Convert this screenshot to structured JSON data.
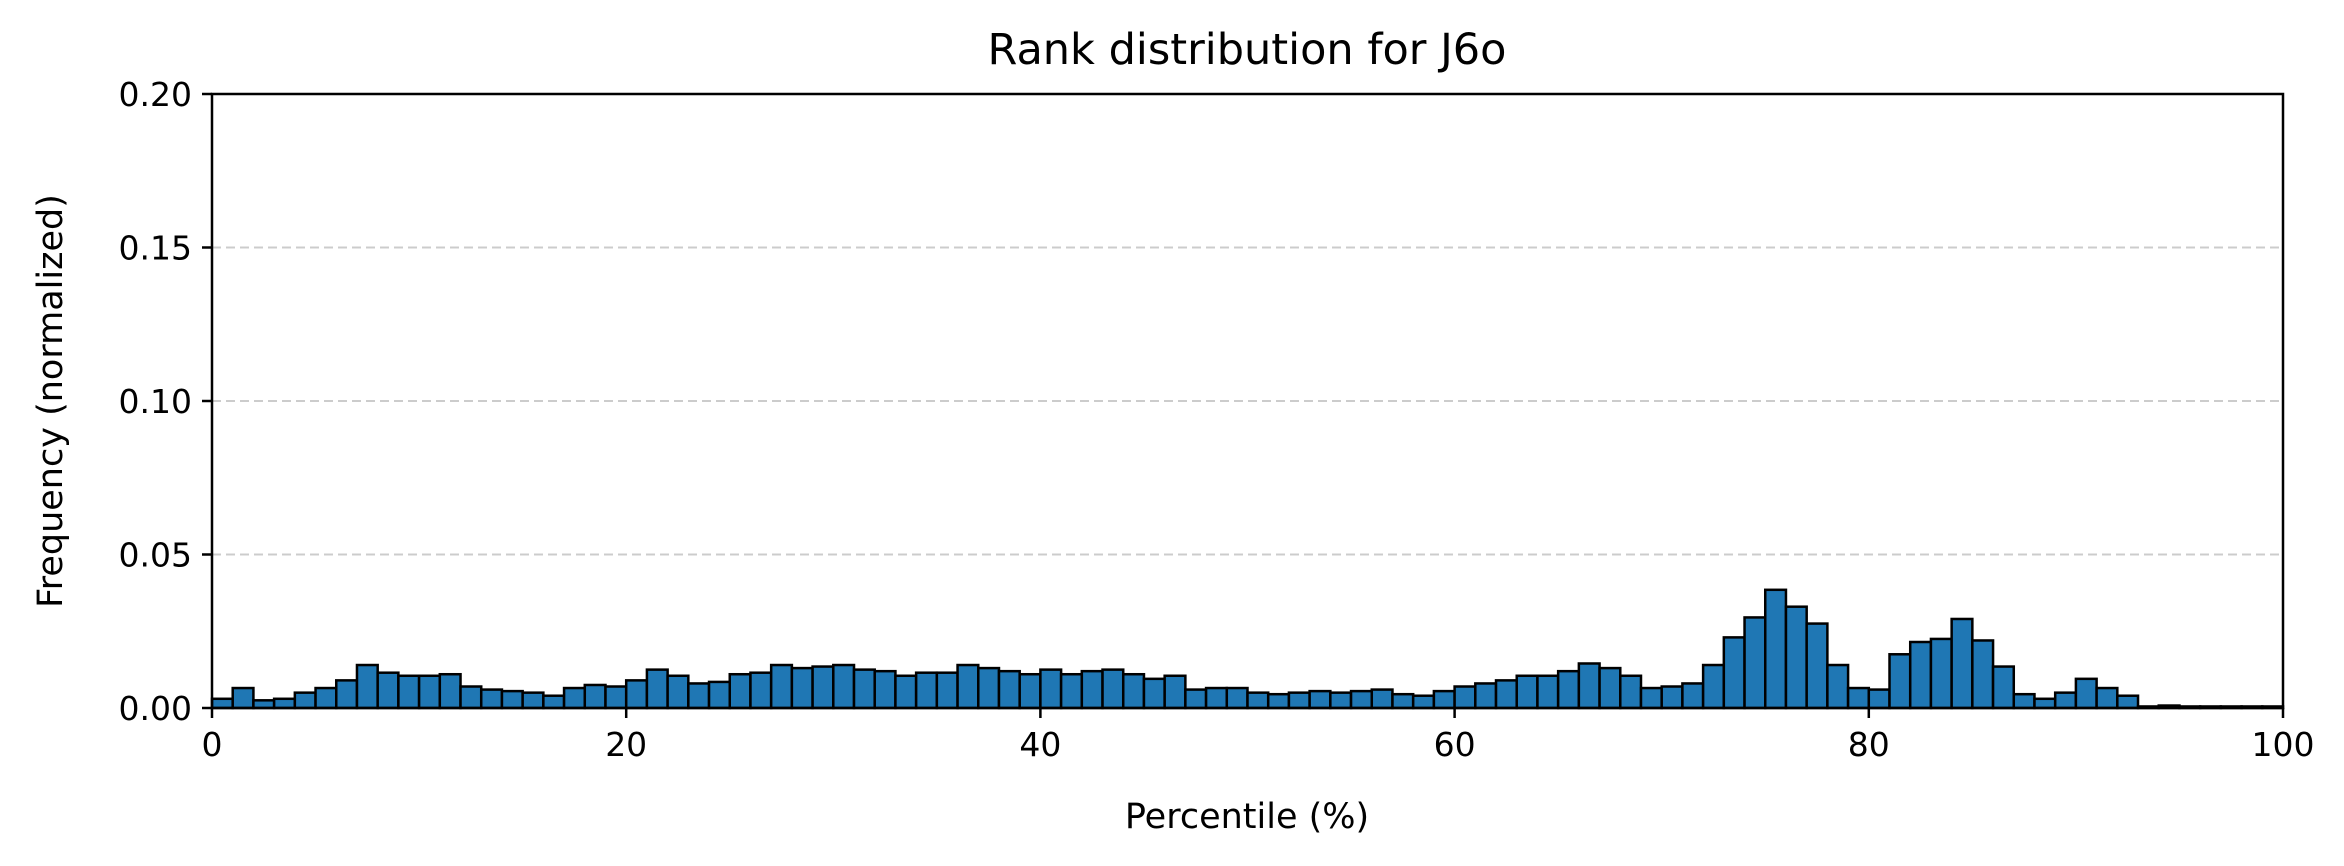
{
  "chart_data": {
    "type": "bar",
    "title": "Rank distribution for J6o",
    "xlabel": "Percentile (%)",
    "ylabel": "Frequency (normalized)",
    "xlim": [
      0,
      100
    ],
    "ylim": [
      0,
      0.2
    ],
    "xticks": [
      0,
      20,
      40,
      60,
      80,
      100
    ],
    "xtick_labels": [
      "0",
      "20",
      "40",
      "60",
      "80",
      "100"
    ],
    "yticks": [
      0,
      0.05,
      0.1,
      0.15,
      0.2
    ],
    "ytick_labels": [
      "0.00",
      "0.05",
      "0.10",
      "0.15",
      "0.20"
    ],
    "grid": "y-dashed",
    "bin_width": 1,
    "bin_starts": [
      0,
      1,
      2,
      3,
      4,
      5,
      6,
      7,
      8,
      9,
      10,
      11,
      12,
      13,
      14,
      15,
      16,
      17,
      18,
      19,
      20,
      21,
      22,
      23,
      24,
      25,
      26,
      27,
      28,
      29,
      30,
      31,
      32,
      33,
      34,
      35,
      36,
      37,
      38,
      39,
      40,
      41,
      42,
      43,
      44,
      45,
      46,
      47,
      48,
      49,
      50,
      51,
      52,
      53,
      54,
      55,
      56,
      57,
      58,
      59,
      60,
      61,
      62,
      63,
      64,
      65,
      66,
      67,
      68,
      69,
      70,
      71,
      72,
      73,
      74,
      75,
      76,
      77,
      78,
      79,
      80,
      81,
      82,
      83,
      84,
      85,
      86,
      87,
      88,
      89,
      90,
      91,
      92,
      93,
      94,
      95,
      96,
      97,
      98,
      99
    ],
    "values": [
      0.003,
      0.0065,
      0.0025,
      0.003,
      0.005,
      0.0065,
      0.009,
      0.014,
      0.0115,
      0.0105,
      0.0105,
      0.011,
      0.007,
      0.006,
      0.0055,
      0.005,
      0.004,
      0.0065,
      0.0075,
      0.007,
      0.009,
      0.0125,
      0.0105,
      0.008,
      0.0085,
      0.011,
      0.0115,
      0.014,
      0.013,
      0.0135,
      0.014,
      0.0125,
      0.012,
      0.0105,
      0.0115,
      0.0115,
      0.014,
      0.013,
      0.012,
      0.011,
      0.0125,
      0.011,
      0.012,
      0.0125,
      0.011,
      0.0095,
      0.0105,
      0.006,
      0.0065,
      0.0065,
      0.005,
      0.0045,
      0.005,
      0.0055,
      0.005,
      0.0055,
      0.006,
      0.0045,
      0.004,
      0.0055,
      0.007,
      0.008,
      0.009,
      0.0105,
      0.0105,
      0.012,
      0.0145,
      0.013,
      0.0105,
      0.0065,
      0.007,
      0.008,
      0.014,
      0.023,
      0.0295,
      0.0385,
      0.033,
      0.0275,
      0.014,
      0.0065,
      0.006,
      0.0175,
      0.0215,
      0.0225,
      0.029,
      0.022,
      0.0135,
      0.0045,
      0.003,
      0.005,
      0.0095,
      0.0065,
      0.004,
      0.0005,
      0.0008,
      0.0005,
      0.0005,
      0.0005,
      0.0005,
      0.0005
    ],
    "bar_color": "#1f77b4",
    "edge_color": "#000000"
  }
}
